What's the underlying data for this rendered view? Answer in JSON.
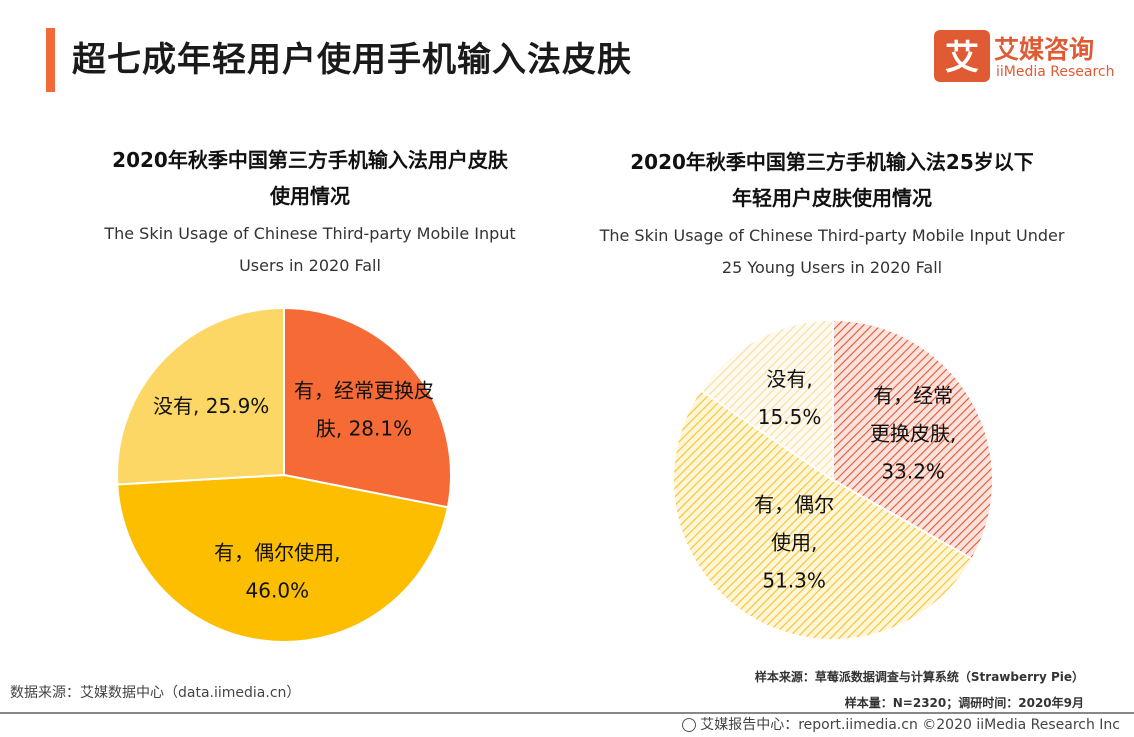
{
  "page": {
    "title": "超七成年轻用户使用手机输入法皮肤",
    "logo_cn": "艾媒咨询",
    "logo_en": "iiMedia Research",
    "logo_mark": "艾"
  },
  "chart_data": [
    {
      "type": "pie",
      "title": "2020年秋季中国第三方手机输入法用户皮肤使用情况",
      "title_line1": "2020年秋季中国第三方手机输入法用户皮肤",
      "title_line2": "使用情况",
      "subtitle_line1": "The Skin Usage of Chinese Third-party Mobile Input",
      "subtitle_line2": "Users in 2020 Fall",
      "slices": [
        {
          "label": "有，经常更换皮肤",
          "value": 28.1,
          "color": "#f66a36",
          "text_lines": [
            "有，经常更换皮",
            "肤, 28.1%"
          ]
        },
        {
          "label": "有，偶尔使用",
          "value": 46.0,
          "color": "#fdbe00",
          "text_lines": [
            "有，偶尔使用,",
            "46.0%"
          ]
        },
        {
          "label": "没有",
          "value": 25.9,
          "color": "#fdd766",
          "text_lines": [
            "没有, 25.9%"
          ]
        }
      ]
    },
    {
      "type": "pie",
      "title": "2020年秋季中国第三方手机输入法25岁以下年轻用户皮肤使用情况",
      "title_line1": "2020年秋季中国第三方手机输入法25岁以下",
      "title_line2": "年轻用户皮肤使用情况",
      "subtitle_line1": "The Skin Usage of Chinese Third-party Mobile Input Under",
      "subtitle_line2": "25  Young Users in 2020 Fall",
      "slices": [
        {
          "label": "有，经常更换皮肤",
          "value": 33.2,
          "color": "#f08a72",
          "text_lines": [
            "有，经常",
            "更换皮肤,",
            "33.2%"
          ]
        },
        {
          "label": "有，偶尔使用",
          "value": 51.3,
          "color": "#fcd45c",
          "text_lines": [
            "有，偶尔",
            "使用,",
            "51.3%"
          ]
        },
        {
          "label": "没有",
          "value": 15.5,
          "color": "#f9e2a8",
          "text_lines": [
            "没有,",
            "15.5%"
          ]
        }
      ]
    }
  ],
  "footer": {
    "source_left": "数据来源：艾媒数据中心（data.iimedia.cn）",
    "sample_source": "样本来源：草莓派数据调查与计算系统（Strawberry Pie）",
    "sample_size": "样本量：N=2320；调研时间：2020年9月",
    "copyright": "艾媒报告中心：report.iimedia.cn   ©2020  iiMedia Research  Inc"
  }
}
